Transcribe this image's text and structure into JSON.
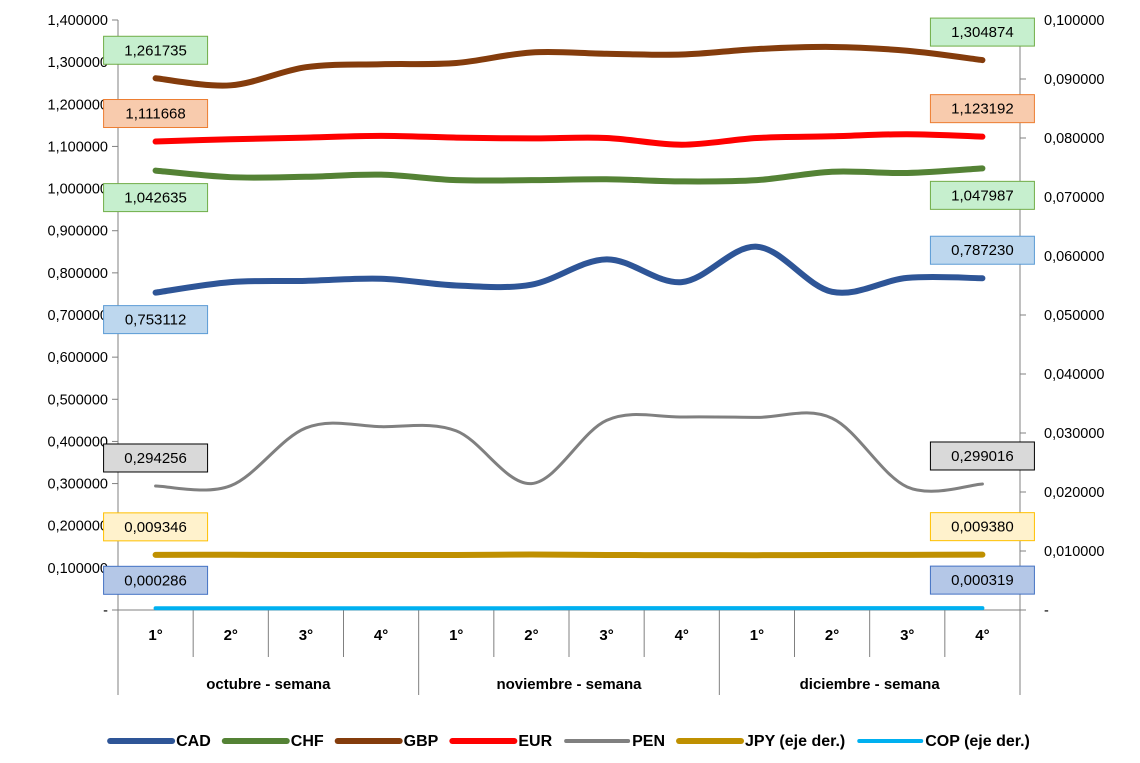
{
  "chart_data": {
    "type": "line",
    "group_labels": [
      "octubre - semana",
      "noviembre - semana",
      "diciembre - semana"
    ],
    "categories": [
      "1°",
      "2°",
      "3°",
      "4°",
      "1°",
      "2°",
      "3°",
      "4°",
      "1°",
      "2°",
      "3°",
      "4°"
    ],
    "y_left": {
      "ylim": [
        0,
        1.4
      ],
      "ticks": [
        {
          "v": 0,
          "label": "-"
        },
        {
          "v": 0.1,
          "label": "0,100000"
        },
        {
          "v": 0.2,
          "label": "0,200000"
        },
        {
          "v": 0.3,
          "label": "0,300000"
        },
        {
          "v": 0.4,
          "label": "0,400000"
        },
        {
          "v": 0.5,
          "label": "0,500000"
        },
        {
          "v": 0.6,
          "label": "0,600000"
        },
        {
          "v": 0.7,
          "label": "0,700000"
        },
        {
          "v": 0.8,
          "label": "0,800000"
        },
        {
          "v": 0.9,
          "label": "0,900000"
        },
        {
          "v": 1.0,
          "label": "1,000000"
        },
        {
          "v": 1.1,
          "label": "1,100000"
        },
        {
          "v": 1.2,
          "label": "1,200000"
        },
        {
          "v": 1.3,
          "label": "1,300000"
        },
        {
          "v": 1.4,
          "label": "1,400000"
        }
      ]
    },
    "y_right": {
      "ylim": [
        0,
        0.1
      ],
      "ticks": [
        {
          "v": 0,
          "label": "-"
        },
        {
          "v": 0.01,
          "label": "0,010000"
        },
        {
          "v": 0.02,
          "label": "0,020000"
        },
        {
          "v": 0.03,
          "label": "0,030000"
        },
        {
          "v": 0.04,
          "label": "0,040000"
        },
        {
          "v": 0.05,
          "label": "0,050000"
        },
        {
          "v": 0.06,
          "label": "0,060000"
        },
        {
          "v": 0.07,
          "label": "0,070000"
        },
        {
          "v": 0.08,
          "label": "0,080000"
        },
        {
          "v": 0.09,
          "label": "0,090000"
        },
        {
          "v": 0.1,
          "label": "0,100000"
        }
      ]
    },
    "grid": false,
    "legend_position": "bottom",
    "series": [
      {
        "name": "CAD",
        "axis": "left",
        "color": "#2E5597",
        "width": 6,
        "values": [
          0.753112,
          0.778,
          0.781,
          0.786,
          0.77,
          0.772,
          0.832,
          0.778,
          0.862,
          0.755,
          0.788,
          0.78723
        ],
        "label_first": {
          "text": "0,753112",
          "side": "below",
          "fill": "#BDD7EE",
          "stroke": "#5B9BD5"
        },
        "label_last": {
          "text": "0,787230",
          "side": "above",
          "fill": "#BDD7EE",
          "stroke": "#5B9BD5"
        }
      },
      {
        "name": "CHF",
        "axis": "left",
        "color": "#548235",
        "width": 6,
        "values": [
          1.042635,
          1.027,
          1.028,
          1.033,
          1.02,
          1.02,
          1.022,
          1.017,
          1.02,
          1.04,
          1.037,
          1.047987
        ],
        "label_first": {
          "text": "1,042635",
          "side": "below",
          "fill": "#C6EFCE",
          "stroke": "#70AD47"
        },
        "label_last": {
          "text": "1,047987",
          "side": "below",
          "fill": "#C6EFCE",
          "stroke": "#70AD47"
        }
      },
      {
        "name": "GBP",
        "axis": "left",
        "color": "#843C0C",
        "width": 6,
        "values": [
          1.261735,
          1.245,
          1.288,
          1.295,
          1.298,
          1.323,
          1.32,
          1.318,
          1.331,
          1.336,
          1.327,
          1.304874
        ],
        "label_first": {
          "text": "1,261735",
          "side": "above",
          "fill": "#C6EFCE",
          "stroke": "#70AD47"
        },
        "label_last": {
          "text": "1,304874",
          "side": "above",
          "fill": "#C6EFCE",
          "stroke": "#70AD47"
        }
      },
      {
        "name": "EUR",
        "axis": "left",
        "color": "#FF0000",
        "width": 6,
        "values": [
          1.111668,
          1.117,
          1.121,
          1.125,
          1.121,
          1.119,
          1.12,
          1.104,
          1.12,
          1.124,
          1.129,
          1.123192
        ],
        "label_first": {
          "text": "1,111668",
          "side": "above",
          "fill": "#F8CBAD",
          "stroke": "#ED7D31"
        },
        "label_last": {
          "text": "1,123192",
          "side": "above",
          "fill": "#F8CBAD",
          "stroke": "#ED7D31"
        }
      },
      {
        "name": "PEN",
        "axis": "left",
        "color": "#808080",
        "width": 3,
        "values": [
          0.294256,
          0.295,
          0.432,
          0.435,
          0.425,
          0.3,
          0.45,
          0.458,
          0.457,
          0.455,
          0.292,
          0.299016
        ],
        "label_first": {
          "text": "0,294256",
          "side": "above",
          "fill": "#D9D9D9",
          "stroke": "#000000"
        },
        "label_last": {
          "text": "0,299016",
          "side": "above",
          "fill": "#D9D9D9",
          "stroke": "#000000"
        }
      },
      {
        "name": "JPY (eje der.)",
        "axis": "right",
        "color": "#BF9000",
        "width": 6,
        "values": [
          0.009346,
          0.00936,
          0.00933,
          0.00932,
          0.00932,
          0.0094,
          0.00932,
          0.00931,
          0.00929,
          0.00933,
          0.00935,
          0.00938
        ],
        "label_first": {
          "text": "0,009346",
          "side": "above",
          "fill": "#FFF2CC",
          "stroke": "#FFC000"
        },
        "label_last": {
          "text": "0,009380",
          "side": "above",
          "fill": "#FFF2CC",
          "stroke": "#FFC000"
        }
      },
      {
        "name": "COP (eje der.)",
        "axis": "right",
        "color": "#00B0F0",
        "width": 4,
        "values": [
          0.000286,
          0.00029,
          0.0003,
          0.0003,
          0.0003,
          0.0003,
          0.00032,
          0.00031,
          0.00031,
          0.00031,
          0.00032,
          0.000319
        ],
        "label_first": {
          "text": "0,000286",
          "side": "above",
          "fill": "#B4C7E7",
          "stroke": "#4472C4"
        },
        "label_last": {
          "text": "0,000319",
          "side": "above",
          "fill": "#B4C7E7",
          "stroke": "#4472C4"
        }
      }
    ]
  }
}
